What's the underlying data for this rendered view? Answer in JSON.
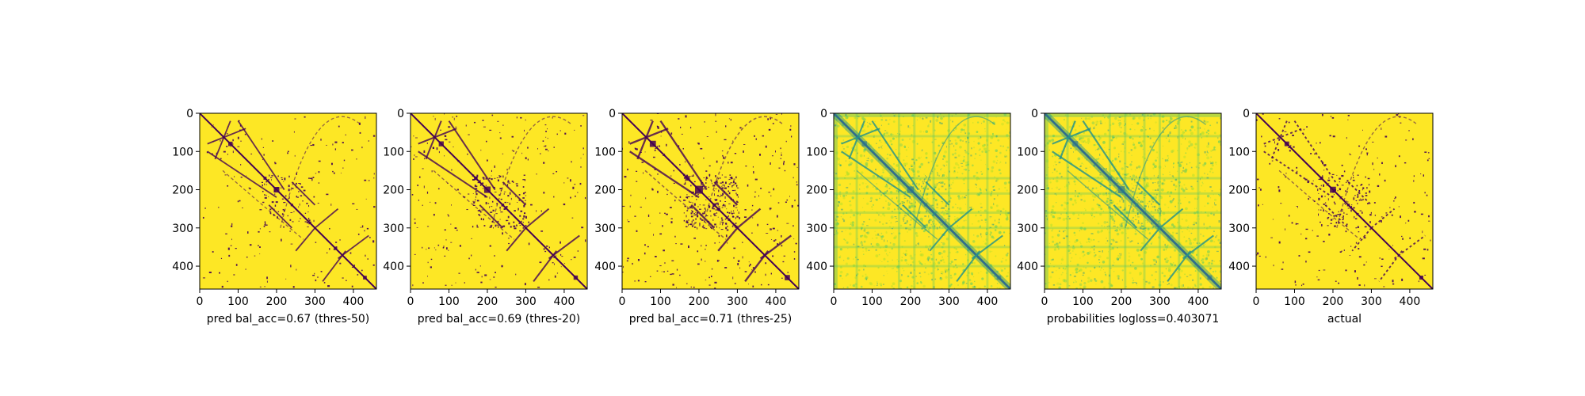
{
  "chart_data": [
    {
      "type": "heatmap",
      "title": "",
      "xlabel": "pred bal_acc=0.67 (thres-50)",
      "ylabel": "",
      "xlim": [
        0,
        460
      ],
      "ylim": [
        460,
        0
      ],
      "xticks": [
        "0",
        "100",
        "200",
        "300",
        "400"
      ],
      "yticks": [
        "0",
        "100",
        "200",
        "300",
        "400"
      ],
      "variant": "binary",
      "density": 0.35,
      "colors": {
        "high": "#fde725",
        "low": "#440154"
      }
    },
    {
      "type": "heatmap",
      "title": "",
      "xlabel": "pred bal_acc=0.69 (thres-20)",
      "ylabel": "",
      "xlim": [
        0,
        460
      ],
      "ylim": [
        460,
        0
      ],
      "xticks": [
        "0",
        "100",
        "200",
        "300",
        "400"
      ],
      "yticks": [
        "0",
        "100",
        "200",
        "300",
        "400"
      ],
      "variant": "binary",
      "density": 0.55,
      "colors": {
        "high": "#fde725",
        "low": "#440154"
      }
    },
    {
      "type": "heatmap",
      "title": "",
      "xlabel": "pred bal_acc=0.71 (thres-25)",
      "ylabel": "",
      "xlim": [
        0,
        460
      ],
      "ylim": [
        460,
        0
      ],
      "xticks": [
        "0",
        "100",
        "200",
        "300",
        "400"
      ],
      "yticks": [
        "0",
        "100",
        "200",
        "300",
        "400"
      ],
      "variant": "binary",
      "density": 0.9,
      "colors": {
        "high": "#fde725",
        "low": "#440154"
      }
    },
    {
      "type": "heatmap",
      "title": "",
      "xlabel": "",
      "ylabel": "",
      "xlim": [
        0,
        460
      ],
      "ylim": [
        460,
        0
      ],
      "xticks": [
        "0",
        "100",
        "200",
        "300",
        "400"
      ],
      "yticks": [
        "0",
        "100",
        "200",
        "300",
        "400"
      ],
      "variant": "prob",
      "density": 0.6,
      "colors": {
        "high": "#fde725",
        "mid": "#21918c",
        "low": "#3b528b"
      }
    },
    {
      "type": "heatmap",
      "title": "",
      "xlabel": "probabilities logloss=0.403071",
      "ylabel": "",
      "xlim": [
        0,
        460
      ],
      "ylim": [
        460,
        0
      ],
      "xticks": [
        "0",
        "100",
        "200",
        "300",
        "400"
      ],
      "yticks": [
        "0",
        "100",
        "200",
        "300",
        "400"
      ],
      "variant": "prob",
      "density": 0.7,
      "colors": {
        "high": "#fde725",
        "mid": "#21918c",
        "low": "#3b528b"
      }
    },
    {
      "type": "heatmap",
      "title": "",
      "xlabel": "actual",
      "ylabel": "",
      "xlim": [
        0,
        460
      ],
      "ylim": [
        460,
        0
      ],
      "xticks": [
        "0",
        "100",
        "200",
        "300",
        "400"
      ],
      "yticks": [
        "0",
        "100",
        "200",
        "300",
        "400"
      ],
      "variant": "actual",
      "density": 0.45,
      "colors": {
        "high": "#fde725",
        "low": "#440154"
      }
    }
  ]
}
